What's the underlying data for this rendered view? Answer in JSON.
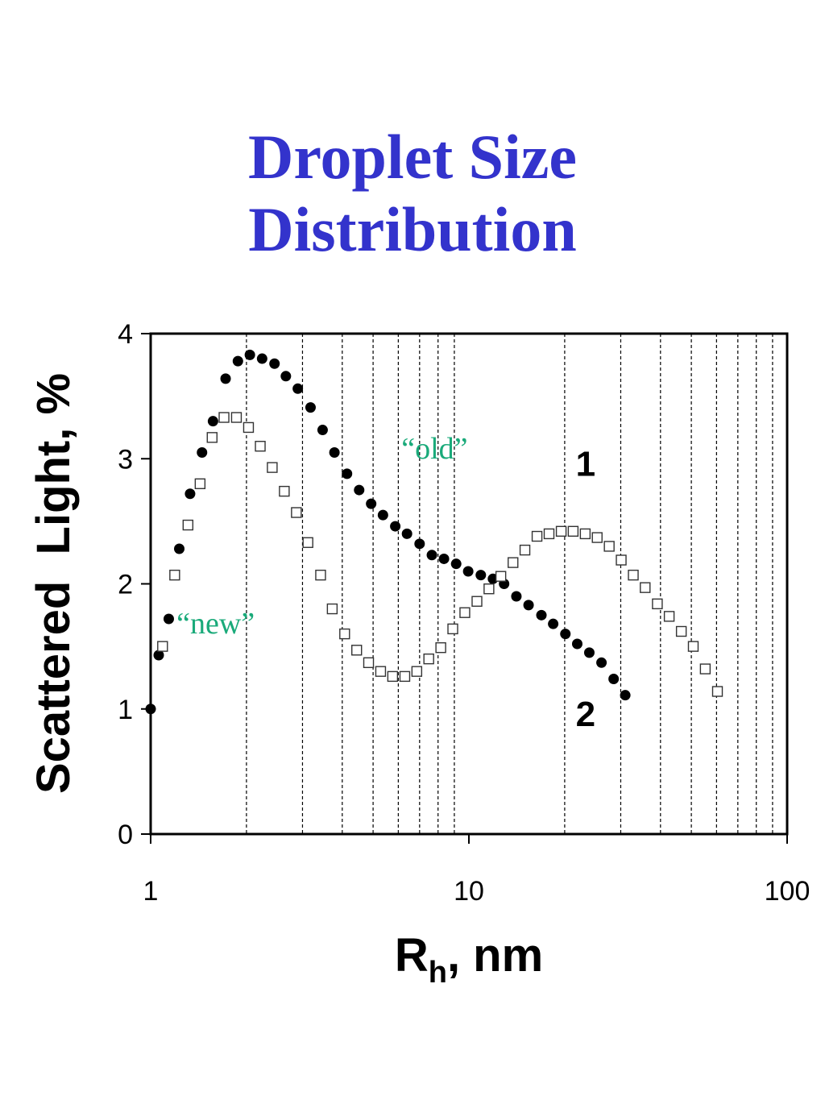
{
  "title_line1": "Droplet Size",
  "title_line2": "Distribution",
  "colors": {
    "title": "#3333cc",
    "annotation": "#1aaa7a",
    "axis": "#000000"
  },
  "chart_data": {
    "type": "scatter",
    "xscale": "log",
    "xlim": [
      1,
      100
    ],
    "ylim": [
      0,
      4
    ],
    "xticks": [
      1,
      10,
      100
    ],
    "xtick_labels": [
      "1",
      "10",
      "100"
    ],
    "yticks": [
      0,
      1,
      2,
      3,
      4
    ],
    "ytick_labels": [
      "0",
      "1",
      "2",
      "3",
      "4"
    ],
    "ylabel": "Scattered  Light, %",
    "xlabel_main": "R",
    "xlabel_sub": "h",
    "xlabel_rest": ", nm",
    "grid": "vertical dashed lines at log minor ticks",
    "annotations": [
      {
        "text": "“old”",
        "x": 7.8,
        "y": 2.9
      },
      {
        "text": "“new”",
        "x": 1.6,
        "y": 1.5
      }
    ],
    "curve_labels": [
      {
        "text": "1",
        "x": 23,
        "y": 2.8
      },
      {
        "text": "2",
        "x": 23,
        "y": 0.8
      }
    ],
    "series": [
      {
        "marker": "filled-circle",
        "x": [
          1.0,
          1.06,
          1.14,
          1.23,
          1.33,
          1.45,
          1.57,
          1.72,
          1.88,
          2.05,
          2.24,
          2.45,
          2.66,
          2.9,
          3.18,
          3.47,
          3.78,
          4.14,
          4.52,
          4.93,
          5.37,
          5.87,
          6.39,
          7.0,
          7.65,
          8.35,
          9.12,
          9.95,
          10.9,
          11.9,
          12.9,
          14.1,
          15.4,
          16.9,
          18.4,
          20.1,
          21.9,
          23.9,
          26.1,
          28.5,
          31.0
        ],
        "values": [
          1.0,
          1.43,
          1.72,
          2.28,
          2.72,
          3.05,
          3.3,
          3.64,
          3.78,
          3.83,
          3.8,
          3.76,
          3.66,
          3.56,
          3.41,
          3.23,
          3.05,
          2.88,
          2.75,
          2.64,
          2.55,
          2.46,
          2.4,
          2.32,
          2.23,
          2.2,
          2.16,
          2.1,
          2.07,
          2.04,
          2.0,
          1.9,
          1.83,
          1.75,
          1.68,
          1.6,
          1.52,
          1.45,
          1.37,
          1.24,
          1.11
        ]
      },
      {
        "marker": "open-square",
        "x": [
          1.09,
          1.19,
          1.31,
          1.43,
          1.56,
          1.7,
          1.86,
          2.03,
          2.21,
          2.41,
          2.63,
          2.87,
          3.12,
          3.42,
          3.72,
          4.07,
          4.44,
          4.84,
          5.28,
          5.76,
          6.29,
          6.86,
          7.48,
          8.16,
          8.9,
          9.71,
          10.6,
          11.56,
          12.6,
          13.76,
          15.0,
          16.37,
          17.86,
          19.5,
          21.26,
          23.2,
          25.3,
          27.6,
          30.1,
          32.85,
          35.8,
          39.1,
          42.6,
          46.5,
          50.7,
          55.3,
          60.4
        ],
        "values": [
          1.5,
          2.07,
          2.47,
          2.8,
          3.17,
          3.33,
          3.33,
          3.25,
          3.1,
          2.93,
          2.74,
          2.57,
          2.33,
          2.07,
          1.8,
          1.6,
          1.47,
          1.37,
          1.3,
          1.26,
          1.26,
          1.3,
          1.4,
          1.49,
          1.64,
          1.77,
          1.86,
          1.96,
          2.06,
          2.17,
          2.27,
          2.38,
          2.4,
          2.42,
          2.42,
          2.4,
          2.37,
          2.3,
          2.19,
          2.07,
          1.97,
          1.84,
          1.74,
          1.62,
          1.5,
          1.32,
          1.14
        ]
      }
    ]
  }
}
